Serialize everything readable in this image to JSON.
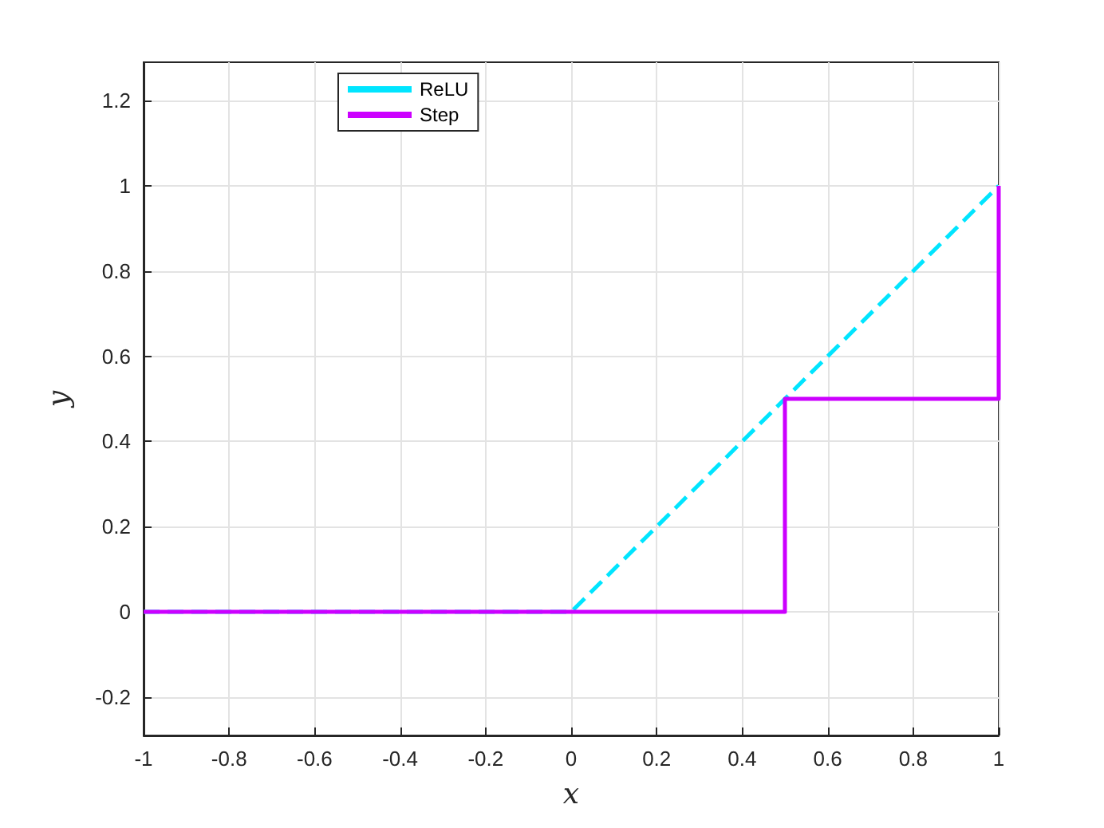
{
  "chart_data": {
    "type": "line",
    "xlabel": "x",
    "ylabel": "y",
    "series": [
      {
        "name": "ReLU",
        "color": "#00e5ff",
        "line_style": "dashed",
        "x": [
          -1,
          0,
          1
        ],
        "values": [
          0,
          0,
          1
        ]
      },
      {
        "name": "Step",
        "color": "#cc00ff",
        "line_style": "solid",
        "x": [
          -1,
          0.5,
          0.5,
          1,
          1
        ],
        "values": [
          0,
          0,
          0.5,
          0.5,
          1
        ]
      }
    ],
    "xlim": [
      -1,
      1
    ],
    "xticks": [
      -1,
      -0.8,
      -0.6,
      -0.4,
      -0.2,
      0,
      0.2,
      0.4,
      0.6,
      0.8,
      1
    ],
    "ylim": [
      -0.29,
      1.29
    ],
    "yticks": [
      -0.2,
      0,
      0.2,
      0.4,
      0.6,
      0.8,
      1,
      1.2
    ],
    "grid": true,
    "legend": "top left",
    "marker": "none"
  }
}
